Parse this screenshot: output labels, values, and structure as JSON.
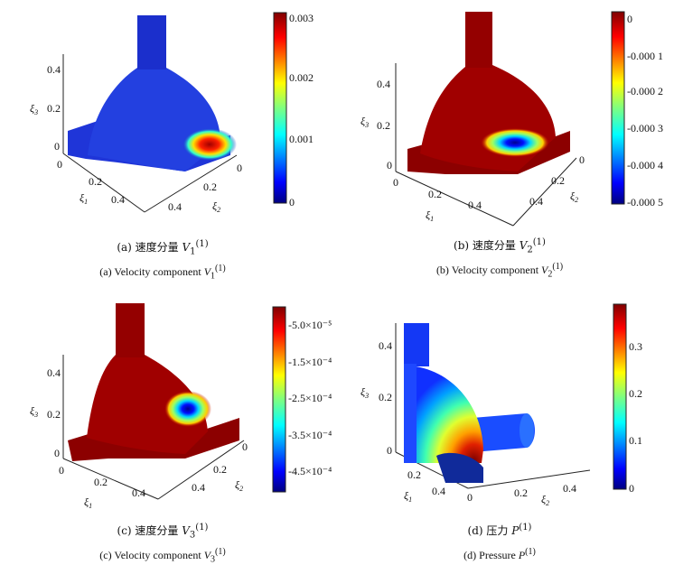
{
  "panels": [
    {
      "id": "a",
      "caption_cn_prefix": "(a) 速度分量 ",
      "caption_en_prefix": "(a) Velocity component ",
      "symbol": "V",
      "symbol_sub": "1",
      "superscript": "(1)",
      "axes": {
        "xi1_ticks": [
          "0",
          "0.2",
          "0.4"
        ],
        "xi2_ticks": [
          "0",
          "0.2",
          "0.4"
        ],
        "xi3_ticks": [
          "0",
          "0.2",
          "0.4"
        ],
        "xi1_label": "ξ",
        "xi1_sub": "1",
        "xi2_label": "ξ",
        "xi2_sub": "2",
        "xi3_label": "ξ",
        "xi3_sub": "3"
      },
      "colorbar_ticks": [
        "0.003",
        "0.002",
        "0.001",
        "0"
      ]
    },
    {
      "id": "b",
      "caption_cn_prefix": "(b) 速度分量 ",
      "caption_en_prefix": "(b) Velocity component ",
      "symbol": "V",
      "symbol_sub": "2",
      "superscript": "(1)",
      "axes": {
        "xi1_ticks": [
          "0",
          "0.2",
          "0.4"
        ],
        "xi2_ticks": [
          "0",
          "0.2",
          "0.4"
        ],
        "xi3_ticks": [
          "0",
          "0.2",
          "0.4"
        ],
        "xi1_label": "ξ",
        "xi1_sub": "1",
        "xi2_label": "ξ",
        "xi2_sub": "2",
        "xi3_label": "ξ",
        "xi3_sub": "3"
      },
      "colorbar_ticks": [
        "0",
        "-0.000 1",
        "-0.000 2",
        "-0.000 3",
        "-0.000 4",
        "-0.000 5"
      ]
    },
    {
      "id": "c",
      "caption_cn_prefix": "(c) 速度分量 ",
      "caption_en_prefix": "(c) Velocity component ",
      "symbol": "V",
      "symbol_sub": "3",
      "superscript": "(1)",
      "axes": {
        "xi1_ticks": [
          "0",
          "0.2",
          "0.4"
        ],
        "xi2_ticks": [
          "0",
          "0.2",
          "0.4"
        ],
        "xi3_ticks": [
          "0",
          "0.2",
          "0.4"
        ],
        "xi1_label": "ξ",
        "xi1_sub": "1",
        "xi2_label": "ξ",
        "xi2_sub": "2",
        "xi3_label": "ξ",
        "xi3_sub": "3"
      },
      "colorbar_ticks": [
        "-5.0×10⁻⁵",
        "-1.5×10⁻⁴",
        "-2.5×10⁻⁴",
        "-3.5×10⁻⁴",
        "-4.5×10⁻⁴"
      ]
    },
    {
      "id": "d",
      "caption_cn_prefix": "(d) 压力 ",
      "caption_en_prefix": "(d) Pressure ",
      "symbol": "P",
      "symbol_sub": "",
      "superscript": "(1)",
      "axes": {
        "xi1_ticks": [
          "0.2",
          "0.4"
        ],
        "xi2_ticks": [
          "0",
          "0.2",
          "0.4"
        ],
        "xi3_ticks": [
          "0",
          "0.2",
          "0.4"
        ],
        "xi1_label": "ξ",
        "xi1_sub": "1",
        "xi2_label": "ξ",
        "xi2_sub": "2",
        "xi3_label": "ξ",
        "xi3_sub": "3"
      },
      "colorbar_ticks": [
        "0.3",
        "0.2",
        "0.1",
        "0"
      ]
    }
  ],
  "colors": {
    "jet_dark_red": "#7f0000",
    "jet_red": "#ff0000",
    "jet_yellow": "#ffff00",
    "jet_cyan": "#00ffff",
    "jet_blue": "#0000ff",
    "jet_dark_blue": "#00007f"
  }
}
